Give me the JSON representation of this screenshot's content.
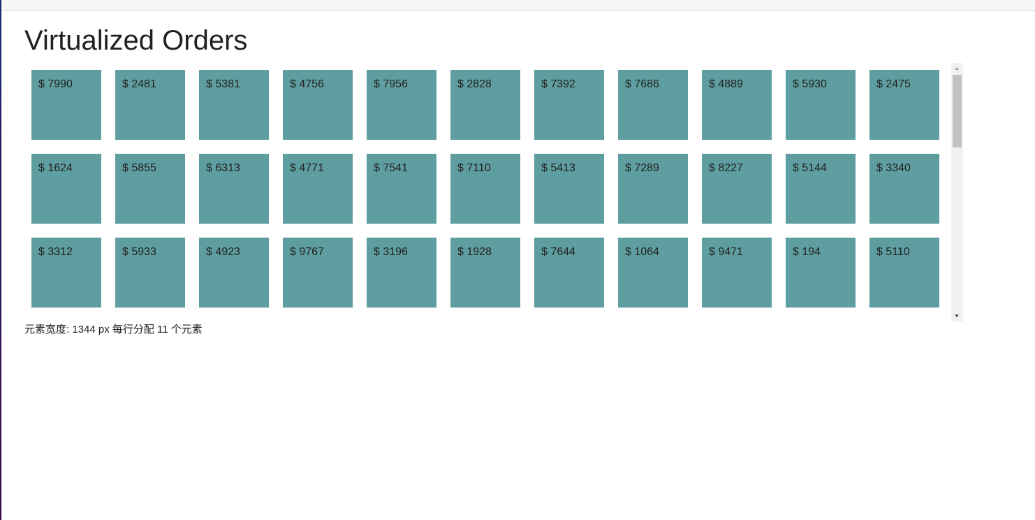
{
  "header": {
    "title": "Virtualized Orders"
  },
  "orders": [
    "$ 7990",
    "$ 2481",
    "$ 5381",
    "$ 4756",
    "$ 7956",
    "$ 2828",
    "$ 7392",
    "$ 7686",
    "$ 4889",
    "$ 5930",
    "$ 2475",
    "$ 1624",
    "$ 5855",
    "$ 6313",
    "$ 4771",
    "$ 7541",
    "$ 7110",
    "$ 5413",
    "$ 7289",
    "$ 8227",
    "$ 5144",
    "$ 3340",
    "$ 3312",
    "$ 5933",
    "$ 4923",
    "$ 9767",
    "$ 3196",
    "$ 1928",
    "$ 7644",
    "$ 1064",
    "$ 9471",
    "$ 194",
    "$ 5110"
  ],
  "footer": "元素宽度: 1344 px 每行分配 11 个元素"
}
